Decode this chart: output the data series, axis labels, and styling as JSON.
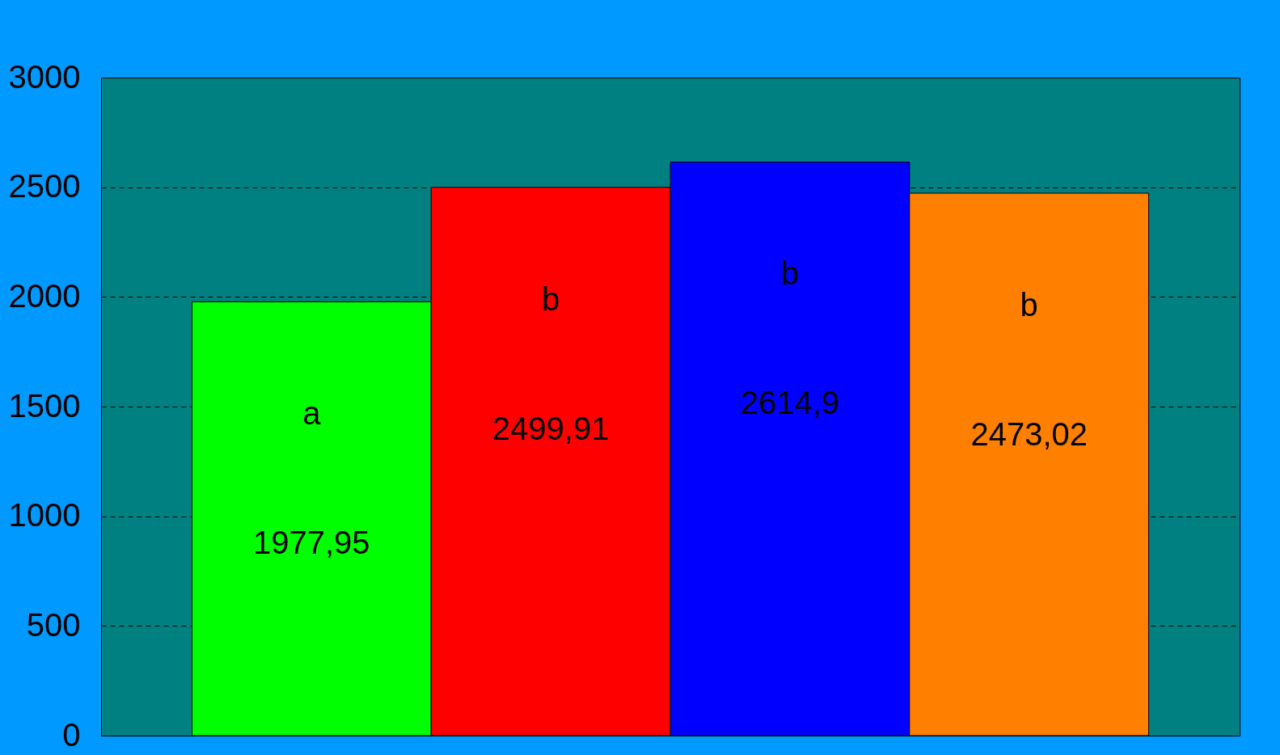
{
  "chart_data": {
    "type": "bar",
    "categories": [
      null,
      null,
      null,
      null
    ],
    "values": [
      1977.95,
      2499.91,
      2614.9,
      2473.02
    ],
    "colors": [
      "#00ff00",
      "#ff0000",
      "#0000ff",
      "#ff8000"
    ],
    "value_labels": [
      "1977,95",
      "2499,91",
      "2614,9",
      "2473,02"
    ],
    "annotations": [
      "a",
      "b",
      "b",
      "b"
    ],
    "ylim": [
      0,
      3000
    ],
    "yticks": [
      0,
      500,
      1000,
      1500,
      2000,
      2500,
      3000
    ],
    "grid": "y",
    "tick_labels": "y"
  }
}
